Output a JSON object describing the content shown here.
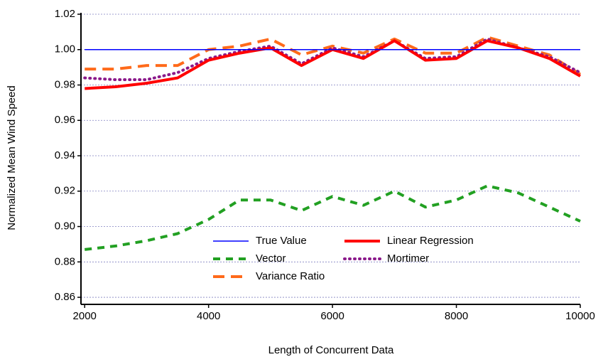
{
  "chart_data": {
    "type": "line",
    "xlabel": "Length of Concurrent Data",
    "ylabel": "Normalized Mean Wind Speed",
    "x": [
      2000,
      2500,
      3000,
      3500,
      4000,
      4500,
      5000,
      5500,
      6000,
      6500,
      7000,
      7500,
      8000,
      8500,
      9000,
      9500,
      10000
    ],
    "series": [
      {
        "name": "True Value",
        "color": "#0000ff",
        "line_style": "solid",
        "line_width": 1.5,
        "values": [
          1.0,
          1.0,
          1.0,
          1.0,
          1.0,
          1.0,
          1.0,
          1.0,
          1.0,
          1.0,
          1.0,
          1.0,
          1.0,
          1.0,
          1.0,
          1.0,
          1.0
        ]
      },
      {
        "name": "Linear Regression",
        "color": "#ff0000",
        "line_style": "solid",
        "line_width": 4,
        "values": [
          0.978,
          0.979,
          0.981,
          0.984,
          0.994,
          0.998,
          1.001,
          0.991,
          1.0,
          0.995,
          1.005,
          0.994,
          0.995,
          1.005,
          1.001,
          0.995,
          0.985
        ]
      },
      {
        "name": "Vector",
        "color": "#22a022",
        "line_style": "dashed",
        "line_width": 4,
        "values": [
          0.887,
          0.889,
          0.892,
          0.896,
          0.904,
          0.915,
          0.915,
          0.909,
          0.917,
          0.912,
          0.92,
          0.911,
          0.915,
          0.923,
          0.919,
          0.911,
          0.903
        ]
      },
      {
        "name": "Mortimer",
        "color": "#8b1a8b",
        "line_style": "dotted",
        "line_width": 4,
        "values": [
          0.984,
          0.983,
          0.983,
          0.987,
          0.995,
          0.999,
          1.002,
          0.992,
          1.001,
          0.996,
          1.005,
          0.995,
          0.996,
          1.006,
          1.001,
          0.996,
          0.987
        ]
      },
      {
        "name": "Variance Ratio",
        "color": "#ff6a1a",
        "line_style": "long-dashed",
        "line_width": 4,
        "values": [
          0.989,
          0.989,
          0.991,
          0.991,
          1.0,
          1.002,
          1.006,
          0.997,
          1.002,
          0.998,
          1.006,
          0.998,
          0.998,
          1.007,
          1.002,
          0.997,
          0.986
        ]
      }
    ],
    "xlim": [
      1940,
      10000
    ],
    "xticks": [
      2000,
      4000,
      6000,
      8000,
      10000
    ],
    "ylim": [
      0.856,
      1.02
    ],
    "yticks": [
      {
        "value": 0.86,
        "label": "0.86"
      },
      {
        "value": 0.88,
        "label": "0.88"
      },
      {
        "value": 0.9,
        "label": "0.90"
      },
      {
        "value": 0.92,
        "label": "0.92"
      },
      {
        "value": 0.94,
        "label": "0.94"
      },
      {
        "value": 0.96,
        "label": "0.96"
      },
      {
        "value": 0.98,
        "label": "0.98"
      },
      {
        "value": 1.0,
        "label": "1.00"
      },
      {
        "value": 1.02,
        "label": "1.02"
      }
    ],
    "grid": true,
    "legend": "center-bottom"
  }
}
